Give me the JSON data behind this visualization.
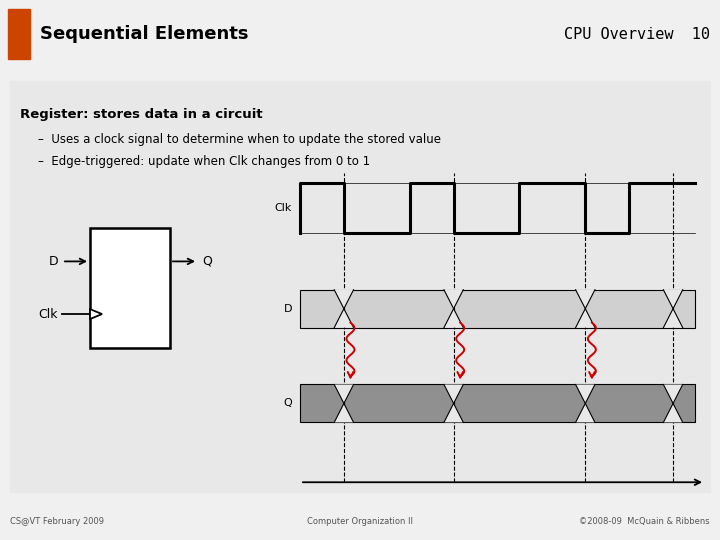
{
  "title_left": "Sequential Elements",
  "title_right": "CPU Overview  10",
  "title_bg": "#c0392b",
  "slide_bg": "#f0f0f0",
  "content_bg": "#e8e8e8",
  "bullet_main": "Register: stores data in a circuit",
  "bullet1": "Uses a clock signal to determine when to update the stored value",
  "bullet2": "Edge-triggered: update when Clk changes from 0 to 1",
  "footer_left": "CS@VT February 2009",
  "footer_center": "Computer Organization II",
  "footer_right": "©2008-09  McQuain & Ribbens",
  "light_gray": "#d0d0d0",
  "dark_gray": "#909090",
  "red_color": "#cc0000",
  "title_orange": "#cc4400"
}
